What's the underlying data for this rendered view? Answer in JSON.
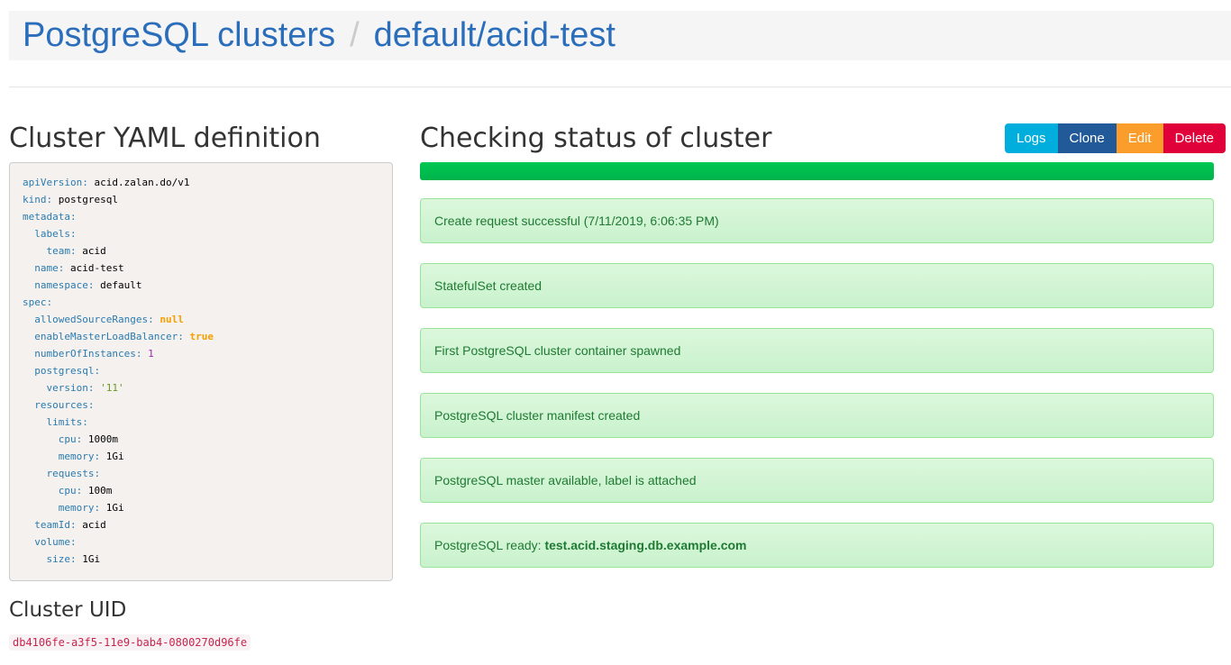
{
  "breadcrumb": {
    "root": "PostgreSQL clusters",
    "separator": "/",
    "current": "default/acid-test"
  },
  "yaml_section": {
    "title": "Cluster YAML definition",
    "lines": [
      {
        "indent": 0,
        "key": "apiVersion",
        "value": "acid.zalan.do/v1",
        "type": "str"
      },
      {
        "indent": 0,
        "key": "kind",
        "value": "postgresql",
        "type": "str"
      },
      {
        "indent": 0,
        "key": "metadata",
        "value": "",
        "type": "str"
      },
      {
        "indent": 1,
        "key": "labels",
        "value": "",
        "type": "str"
      },
      {
        "indent": 2,
        "key": "team",
        "value": "acid",
        "type": "str"
      },
      {
        "indent": 1,
        "key": "name",
        "value": "acid-test",
        "type": "str"
      },
      {
        "indent": 1,
        "key": "namespace",
        "value": "default",
        "type": "str"
      },
      {
        "indent": 0,
        "key": "spec",
        "value": "",
        "type": "str"
      },
      {
        "indent": 1,
        "key": "allowedSourceRanges",
        "value": "null",
        "type": "kw"
      },
      {
        "indent": 1,
        "key": "enableMasterLoadBalancer",
        "value": "true",
        "type": "kw"
      },
      {
        "indent": 1,
        "key": "numberOfInstances",
        "value": "1",
        "type": "num"
      },
      {
        "indent": 1,
        "key": "postgresql",
        "value": "",
        "type": "str"
      },
      {
        "indent": 2,
        "key": "version",
        "value": "'11'",
        "type": "q"
      },
      {
        "indent": 1,
        "key": "resources",
        "value": "",
        "type": "str"
      },
      {
        "indent": 2,
        "key": "limits",
        "value": "",
        "type": "str"
      },
      {
        "indent": 3,
        "key": "cpu",
        "value": "1000m",
        "type": "str"
      },
      {
        "indent": 3,
        "key": "memory",
        "value": "1Gi",
        "type": "str"
      },
      {
        "indent": 2,
        "key": "requests",
        "value": "",
        "type": "str"
      },
      {
        "indent": 3,
        "key": "cpu",
        "value": "100m",
        "type": "str"
      },
      {
        "indent": 3,
        "key": "memory",
        "value": "1Gi",
        "type": "str"
      },
      {
        "indent": 1,
        "key": "teamId",
        "value": "acid",
        "type": "str"
      },
      {
        "indent": 1,
        "key": "volume",
        "value": "",
        "type": "str"
      },
      {
        "indent": 2,
        "key": "size",
        "value": "1Gi",
        "type": "str"
      }
    ]
  },
  "uid_section": {
    "title": "Cluster UID",
    "uid": "db4106fe-a3f5-11e9-bab4-0800270d96fe"
  },
  "status": {
    "title": "Checking status of cluster",
    "progress_percent": 100,
    "buttons": [
      {
        "label": "Logs",
        "color": "#00aede"
      },
      {
        "label": "Clone",
        "color": "#225a99"
      },
      {
        "label": "Edit",
        "color": "#fb9d2a"
      },
      {
        "label": "Delete",
        "color": "#e0003a"
      }
    ],
    "messages": [
      {
        "text": "Create request successful (7/11/2019, 6:06:35 PM)",
        "bold": ""
      },
      {
        "text": "StatefulSet created",
        "bold": ""
      },
      {
        "text": "First PostgreSQL cluster container spawned",
        "bold": ""
      },
      {
        "text": "PostgreSQL cluster manifest created",
        "bold": ""
      },
      {
        "text": "PostgreSQL master available, label is attached",
        "bold": ""
      },
      {
        "text": "PostgreSQL ready: ",
        "bold": "test.acid.staging.db.example.com"
      }
    ]
  }
}
